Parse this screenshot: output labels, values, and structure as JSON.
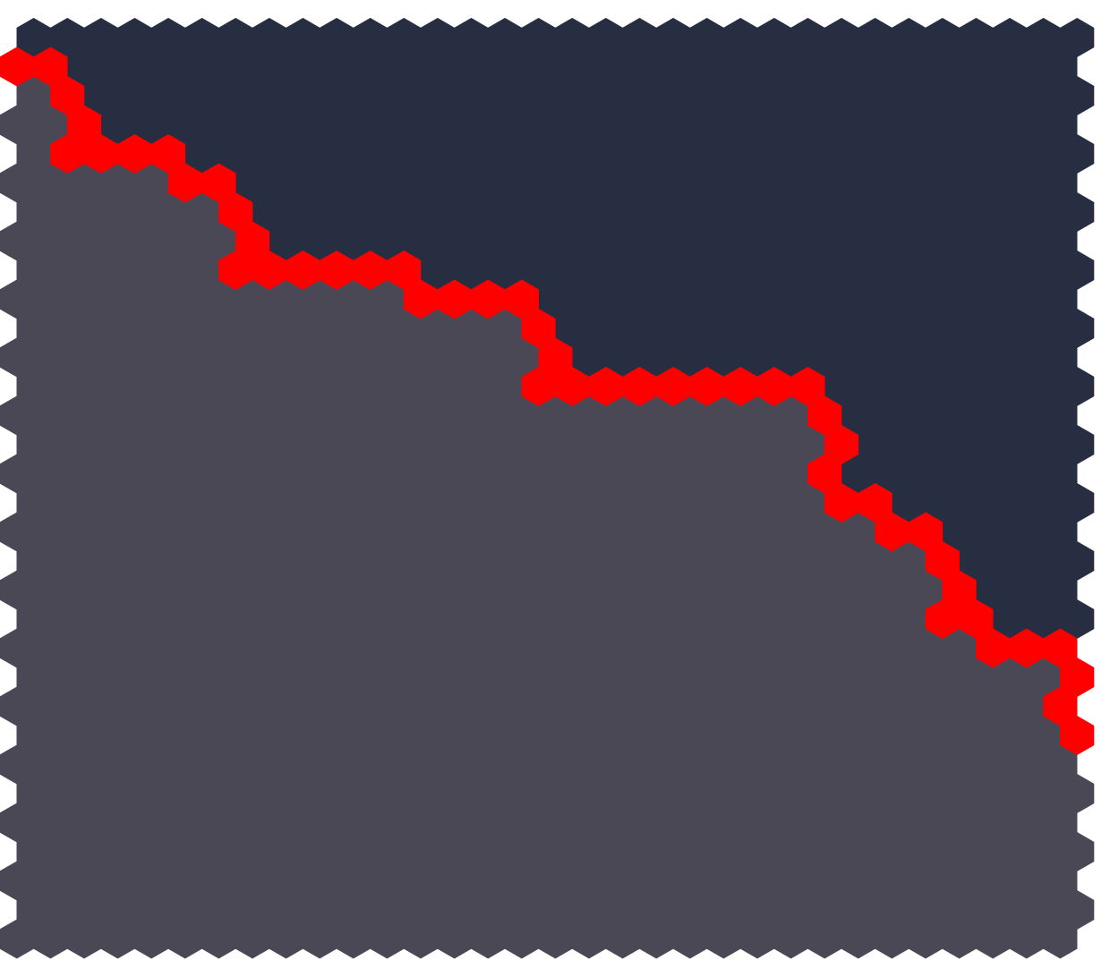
{
  "board": {
    "rows": 32,
    "cols": 32,
    "colors": {
      "upper": "#282e42",
      "lower": "#4a4855",
      "path": "#ff0000"
    },
    "path": [
      [
        1,
        0
      ],
      [
        1,
        1
      ],
      [
        2,
        1
      ],
      [
        3,
        2
      ],
      [
        4,
        1
      ],
      [
        4,
        2
      ],
      [
        4,
        3
      ],
      [
        4,
        4
      ],
      [
        5,
        5
      ],
      [
        5,
        6
      ],
      [
        6,
        6
      ],
      [
        7,
        7
      ],
      [
        8,
        6
      ],
      [
        8,
        7
      ],
      [
        8,
        8
      ],
      [
        8,
        9
      ],
      [
        8,
        10
      ],
      [
        8,
        11
      ],
      [
        9,
        12
      ],
      [
        9,
        13
      ],
      [
        9,
        14
      ],
      [
        9,
        15
      ],
      [
        10,
        15
      ],
      [
        11,
        16
      ],
      [
        12,
        15
      ],
      [
        12,
        16
      ],
      [
        12,
        17
      ],
      [
        12,
        18
      ],
      [
        12,
        19
      ],
      [
        12,
        20
      ],
      [
        12,
        21
      ],
      [
        12,
        22
      ],
      [
        12,
        23
      ],
      [
        13,
        24
      ],
      [
        14,
        24
      ],
      [
        15,
        24
      ],
      [
        16,
        24
      ],
      [
        16,
        25
      ],
      [
        17,
        26
      ],
      [
        17,
        27
      ],
      [
        18,
        27
      ],
      [
        19,
        28
      ],
      [
        20,
        27
      ],
      [
        20,
        28
      ],
      [
        21,
        29
      ],
      [
        21,
        30
      ],
      [
        21,
        31
      ],
      [
        22,
        31
      ],
      [
        23,
        31
      ],
      [
        24,
        31
      ]
    ]
  }
}
